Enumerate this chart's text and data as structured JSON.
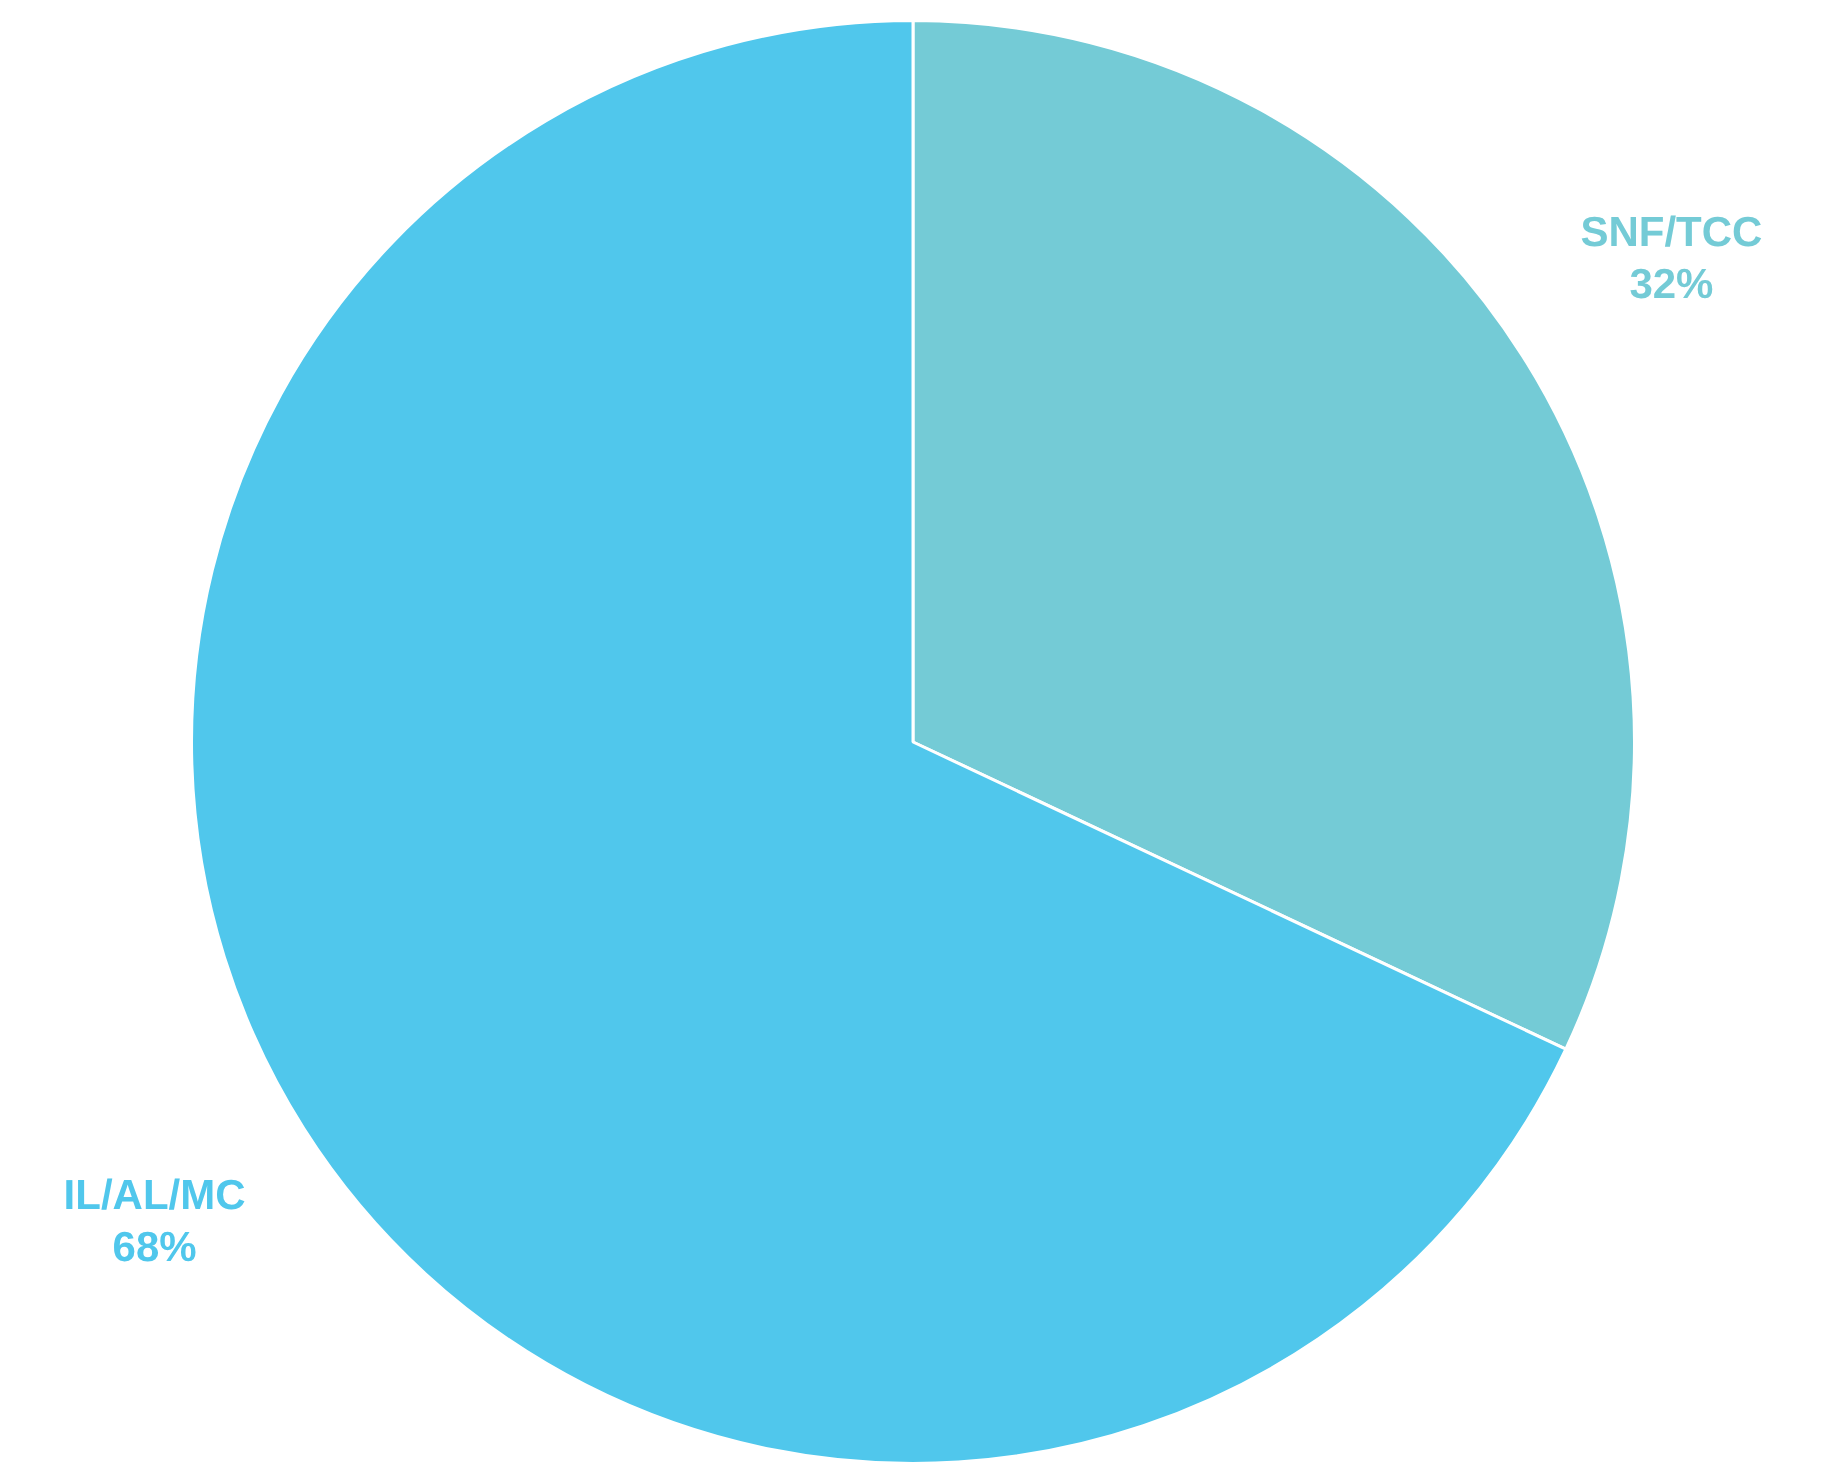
{
  "chart_data": {
    "type": "pie",
    "categories": [
      "SNF/TCC",
      "IL/AL/MC"
    ],
    "values": [
      32,
      68
    ],
    "value_labels": [
      "32%",
      "68%"
    ],
    "colors": [
      "#74cbd6",
      "#50c7ec"
    ],
    "legend": false
  }
}
